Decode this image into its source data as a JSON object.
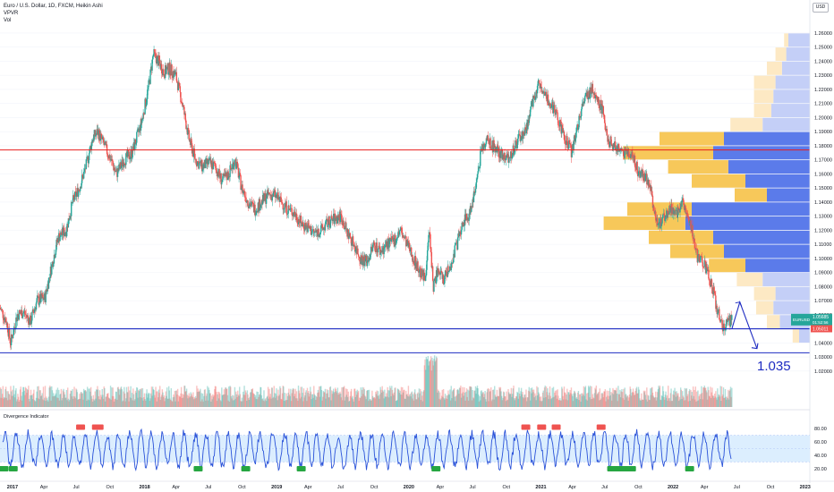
{
  "legend": {
    "symbol_line": "Euro / U.S. Dollar, 1D, FXCM, Heikin Ashi",
    "vpvr": "VPVR",
    "vol": "Vol"
  },
  "currency_button": "USD",
  "price_label": "EURUSD",
  "price_value": "1.05685",
  "countdown": "01:52:56",
  "low_tag": "1.05011",
  "annotation": "1.035",
  "indicator_title": "Divergence Indicator",
  "colors": {
    "up": "#26a69a",
    "down": "#ef5350",
    "blue_line": "#1e2cc2",
    "red_line": "#e81e1e",
    "vp_blue": "#5b7bea",
    "vp_blue_light": "#c4cff7",
    "vp_orange": "#f7c85a",
    "vp_orange_light": "#fde9c4",
    "osc_line": "#2952d9",
    "osc_band": "#dceefe",
    "bull_badge": "#26a641",
    "bear_badge": "#ef5350"
  },
  "chart_data": [
    {
      "type": "candlestick",
      "title": "Euro / U.S. Dollar, 1D, FXCM, Heikin Ashi",
      "y_ticks": [
        "1.26000",
        "1.25000",
        "1.24000",
        "1.23000",
        "1.22000",
        "1.21000",
        "1.20000",
        "1.19000",
        "1.18000",
        "1.17000",
        "1.16000",
        "1.15000",
        "1.14000",
        "1.13000",
        "1.12000",
        "1.11000",
        "1.10000",
        "1.09000",
        "1.08000",
        "1.07000",
        "1.06000",
        "1.05000",
        "1.04000",
        "1.03000",
        "1.02000"
      ],
      "y_range": [
        1.018,
        1.2625
      ],
      "x_ticks": [
        "2017",
        "Apr",
        "Jul",
        "Oct",
        "2018",
        "Apr",
        "Jul",
        "Oct",
        "2019",
        "Apr",
        "Jul",
        "Oct",
        "2020",
        "Apr",
        "Jul",
        "Oct",
        "2021",
        "Apr",
        "Jul",
        "Oct",
        "2022",
        "Apr",
        "Jul",
        "Oct",
        "2023"
      ],
      "x_range_years": [
        2016.92,
        2023.05
      ],
      "price_path": [
        [
          2016.92,
          1.065
        ],
        [
          2016.97,
          1.055
        ],
        [
          2017.0,
          1.04
        ],
        [
          2017.05,
          1.06
        ],
        [
          2017.1,
          1.062
        ],
        [
          2017.15,
          1.055
        ],
        [
          2017.2,
          1.07
        ],
        [
          2017.26,
          1.072
        ],
        [
          2017.3,
          1.09
        ],
        [
          2017.36,
          1.115
        ],
        [
          2017.42,
          1.12
        ],
        [
          2017.47,
          1.14
        ],
        [
          2017.52,
          1.15
        ],
        [
          2017.57,
          1.165
        ],
        [
          2017.62,
          1.185
        ],
        [
          2017.66,
          1.19
        ],
        [
          2017.71,
          1.18
        ],
        [
          2017.76,
          1.17
        ],
        [
          2017.8,
          1.16
        ],
        [
          2017.86,
          1.17
        ],
        [
          2017.92,
          1.175
        ],
        [
          2017.97,
          1.19
        ],
        [
          2018.0,
          1.2
        ],
        [
          2018.05,
          1.225
        ],
        [
          2018.08,
          1.245
        ],
        [
          2018.12,
          1.24
        ],
        [
          2018.16,
          1.232
        ],
        [
          2018.2,
          1.235
        ],
        [
          2018.25,
          1.23
        ],
        [
          2018.3,
          1.21
        ],
        [
          2018.35,
          1.185
        ],
        [
          2018.4,
          1.17
        ],
        [
          2018.45,
          1.165
        ],
        [
          2018.5,
          1.168
        ],
        [
          2018.55,
          1.165
        ],
        [
          2018.6,
          1.155
        ],
        [
          2018.65,
          1.16
        ],
        [
          2018.7,
          1.17
        ],
        [
          2018.75,
          1.15
        ],
        [
          2018.8,
          1.14
        ],
        [
          2018.85,
          1.135
        ],
        [
          2018.9,
          1.14
        ],
        [
          2018.95,
          1.145
        ],
        [
          2019.0,
          1.145
        ],
        [
          2019.05,
          1.14
        ],
        [
          2019.1,
          1.135
        ],
        [
          2019.15,
          1.132
        ],
        [
          2019.2,
          1.125
        ],
        [
          2019.25,
          1.122
        ],
        [
          2019.3,
          1.118
        ],
        [
          2019.35,
          1.12
        ],
        [
          2019.4,
          1.125
        ],
        [
          2019.45,
          1.128
        ],
        [
          2019.5,
          1.13
        ],
        [
          2019.55,
          1.118
        ],
        [
          2019.6,
          1.11
        ],
        [
          2019.65,
          1.1
        ],
        [
          2019.7,
          1.098
        ],
        [
          2019.75,
          1.11
        ],
        [
          2019.8,
          1.105
        ],
        [
          2019.85,
          1.11
        ],
        [
          2019.9,
          1.112
        ],
        [
          2019.95,
          1.12
        ],
        [
          2020.0,
          1.11
        ],
        [
          2020.05,
          1.1
        ],
        [
          2020.1,
          1.09
        ],
        [
          2020.14,
          1.085
        ],
        [
          2020.17,
          1.12
        ],
        [
          2020.2,
          1.08
        ],
        [
          2020.23,
          1.09
        ],
        [
          2020.28,
          1.085
        ],
        [
          2020.33,
          1.095
        ],
        [
          2020.38,
          1.11
        ],
        [
          2020.42,
          1.125
        ],
        [
          2020.47,
          1.13
        ],
        [
          2020.52,
          1.15
        ],
        [
          2020.56,
          1.175
        ],
        [
          2020.6,
          1.185
        ],
        [
          2020.65,
          1.18
        ],
        [
          2020.7,
          1.175
        ],
        [
          2020.75,
          1.17
        ],
        [
          2020.8,
          1.175
        ],
        [
          2020.85,
          1.185
        ],
        [
          2020.9,
          1.19
        ],
        [
          2020.95,
          1.21
        ],
        [
          2021.0,
          1.225
        ],
        [
          2021.04,
          1.22
        ],
        [
          2021.08,
          1.21
        ],
        [
          2021.12,
          1.205
        ],
        [
          2021.16,
          1.195
        ],
        [
          2021.2,
          1.185
        ],
        [
          2021.25,
          1.175
        ],
        [
          2021.28,
          1.19
        ],
        [
          2021.32,
          1.205
        ],
        [
          2021.36,
          1.215
        ],
        [
          2021.4,
          1.22
        ],
        [
          2021.44,
          1.215
        ],
        [
          2021.48,
          1.205
        ],
        [
          2021.52,
          1.185
        ],
        [
          2021.56,
          1.18
        ],
        [
          2021.6,
          1.178
        ],
        [
          2021.64,
          1.175
        ],
        [
          2021.68,
          1.175
        ],
        [
          2021.72,
          1.17
        ],
        [
          2021.76,
          1.16
        ],
        [
          2021.8,
          1.158
        ],
        [
          2021.84,
          1.15
        ],
        [
          2021.88,
          1.13
        ],
        [
          2021.92,
          1.125
        ],
        [
          2021.96,
          1.13
        ],
        [
          2022.0,
          1.135
        ],
        [
          2022.04,
          1.13
        ],
        [
          2022.08,
          1.14
        ],
        [
          2022.12,
          1.135
        ],
        [
          2022.16,
          1.12
        ],
        [
          2022.2,
          1.1
        ],
        [
          2022.24,
          1.098
        ],
        [
          2022.28,
          1.09
        ],
        [
          2022.32,
          1.075
        ],
        [
          2022.36,
          1.06
        ],
        [
          2022.4,
          1.05
        ],
        [
          2022.43,
          1.055
        ],
        [
          2022.46,
          1.0568
        ]
      ],
      "horizontal_lines": [
        {
          "price": 1.177,
          "color": "#e81e1e"
        },
        {
          "price": 1.05,
          "color": "#1e2cc2"
        },
        {
          "price": 1.033,
          "color": "#1e2cc2"
        }
      ],
      "projection_arrow": [
        [
          2022.46,
          1.05
        ],
        [
          2022.52,
          1.069
        ],
        [
          2022.65,
          1.036
        ]
      ],
      "annotation_text": "1.035",
      "last_price": 1.05685,
      "volume_profile": [
        {
          "price": 1.255,
          "buy": 0.02,
          "sell": 0.1
        },
        {
          "price": 1.245,
          "buy": 0.05,
          "sell": 0.11
        },
        {
          "price": 1.235,
          "buy": 0.07,
          "sell": 0.13
        },
        {
          "price": 1.225,
          "buy": 0.1,
          "sell": 0.16
        },
        {
          "price": 1.215,
          "buy": 0.09,
          "sell": 0.17
        },
        {
          "price": 1.205,
          "buy": 0.08,
          "sell": 0.18
        },
        {
          "price": 1.195,
          "buy": 0.15,
          "sell": 0.22
        },
        {
          "price": 1.185,
          "buy": 0.3,
          "sell": 0.4
        },
        {
          "price": 1.175,
          "buy": 0.42,
          "sell": 0.45
        },
        {
          "price": 1.165,
          "buy": 0.28,
          "sell": 0.38
        },
        {
          "price": 1.155,
          "buy": 0.25,
          "sell": 0.3
        },
        {
          "price": 1.145,
          "buy": 0.15,
          "sell": 0.2
        },
        {
          "price": 1.135,
          "buy": 0.3,
          "sell": 0.55
        },
        {
          "price": 1.125,
          "buy": 0.38,
          "sell": 0.58
        },
        {
          "price": 1.115,
          "buy": 0.3,
          "sell": 0.45
        },
        {
          "price": 1.105,
          "buy": 0.25,
          "sell": 0.4
        },
        {
          "price": 1.095,
          "buy": 0.17,
          "sell": 0.3
        },
        {
          "price": 1.085,
          "buy": 0.12,
          "sell": 0.22
        },
        {
          "price": 1.075,
          "buy": 0.1,
          "sell": 0.16
        },
        {
          "price": 1.065,
          "buy": 0.08,
          "sell": 0.17
        },
        {
          "price": 1.055,
          "buy": 0.06,
          "sell": 0.14
        },
        {
          "price": 1.045,
          "buy": 0.03,
          "sell": 0.05
        }
      ]
    },
    {
      "type": "line",
      "title": "Divergence Indicator",
      "y_ticks": [
        "80.00",
        "60.00",
        "40.00",
        "20.00"
      ],
      "y_range": [
        12,
        92
      ],
      "band": [
        30,
        70
      ],
      "signals_bull": [
        2016.95,
        2017.02,
        2018.42,
        2018.78,
        2019.2,
        2020.22,
        2021.55,
        2021.58,
        2021.62,
        2021.65,
        2021.7,
        2022.14
      ],
      "signals_bear": [
        2017.53,
        2017.65,
        2017.67,
        2020.9,
        2021.02,
        2021.13,
        2021.47
      ]
    }
  ]
}
